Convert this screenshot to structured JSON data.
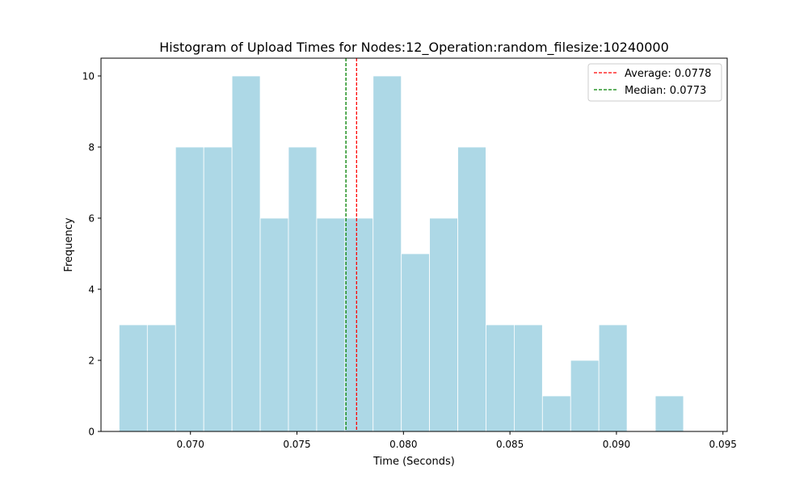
{
  "chart_data": {
    "type": "bar",
    "title": "Histogram of Upload Times for Nodes:12_Operation:random_filesize:10240000",
    "xlabel": "Time (Seconds)",
    "ylabel": "Frequency",
    "xlim": [
      0.0658,
      0.0952
    ],
    "ylim": [
      0,
      10.5
    ],
    "bin_edges": [
      0.06665,
      0.067975,
      0.0693,
      0.070625,
      0.07195,
      0.073275,
      0.0746,
      0.075925,
      0.07725,
      0.078575,
      0.0799,
      0.081225,
      0.08255,
      0.083875,
      0.0852,
      0.086525,
      0.08785,
      0.089175,
      0.0905,
      0.091825,
      0.09315,
      0.094475
    ],
    "values": [
      3,
      3,
      8,
      8,
      10,
      6,
      8,
      6,
      6,
      10,
      5,
      6,
      8,
      3,
      3,
      1,
      2,
      3,
      0,
      1,
      0
    ],
    "bar_color": "#add8e6",
    "x_ticks": [
      "0.070",
      "0.075",
      "0.080",
      "0.085",
      "0.090",
      "0.095"
    ],
    "x_tick_values": [
      0.07,
      0.075,
      0.08,
      0.085,
      0.09,
      0.095
    ],
    "y_ticks": [
      "0",
      "2",
      "4",
      "6",
      "8",
      "10"
    ],
    "y_tick_values": [
      0,
      2,
      4,
      6,
      8,
      10
    ],
    "reference_lines": [
      {
        "label": "Average: 0.0778",
        "value": 0.0778,
        "color": "#ff0000",
        "style": "dashed"
      },
      {
        "label": "Median: 0.0773",
        "value": 0.0773,
        "color": "#008000",
        "style": "dashed"
      }
    ],
    "legend_position": "top-right",
    "grid": false
  }
}
